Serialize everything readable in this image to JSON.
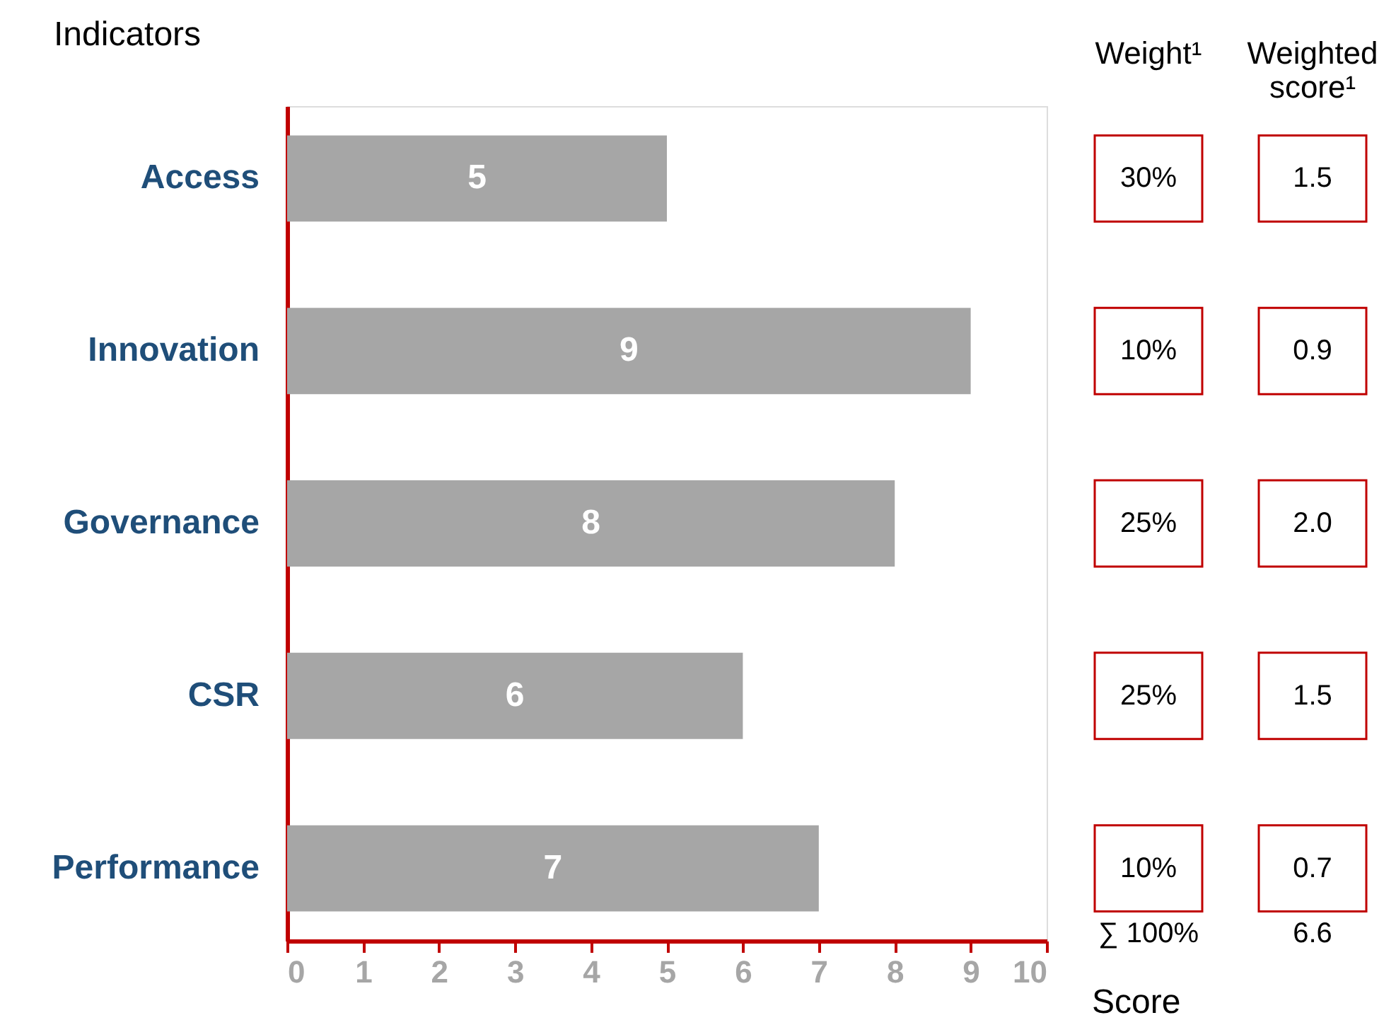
{
  "chart_data": {
    "type": "bar",
    "orientation": "horizontal",
    "ylabel": "Indicators",
    "xlabel": "Score",
    "categories": [
      "Access",
      "Innovation",
      "Governance",
      "CSR",
      "Performance"
    ],
    "values": [
      5,
      9,
      8,
      6,
      7
    ],
    "color": "#a6a6a6",
    "data_labels": true,
    "xlim": [
      0,
      10
    ],
    "xticks": [
      0,
      1,
      2,
      3,
      4,
      5,
      6,
      7,
      8,
      9,
      10
    ],
    "grid": false,
    "annotations": [
      "Weight¹",
      "Weighted score¹",
      "30%",
      "1.5",
      "10%",
      "0.9",
      "25%",
      "2.0",
      "25%",
      "1.5",
      "10%",
      "0.7",
      "∑ 100%",
      "6.6"
    ]
  }
}
